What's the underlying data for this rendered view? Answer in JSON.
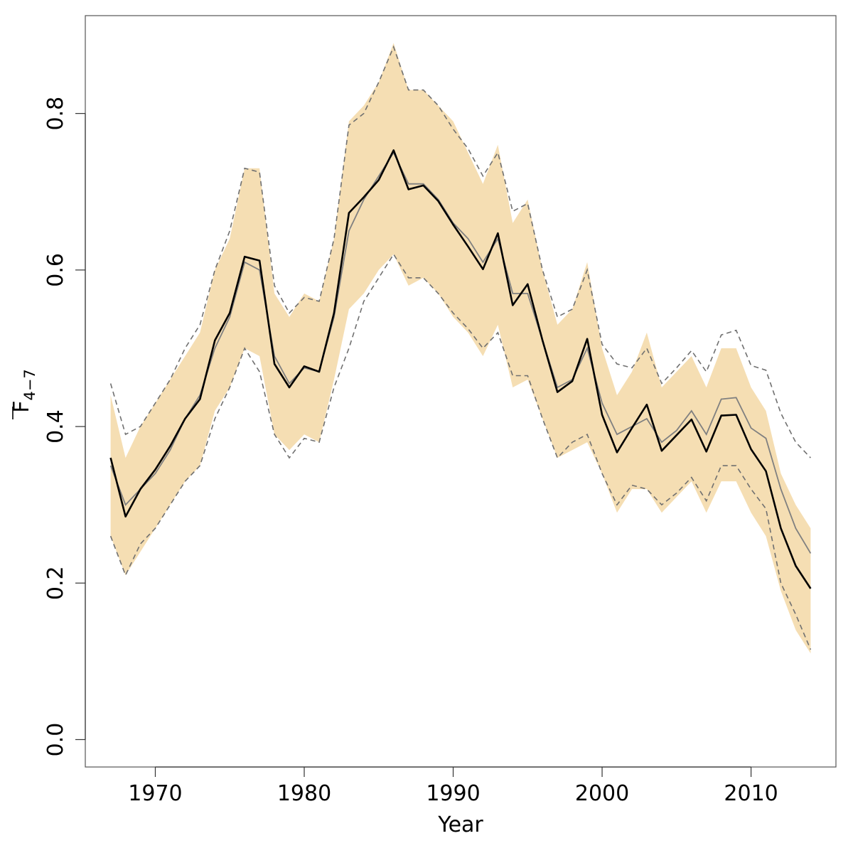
{
  "chart_data": {
    "type": "line",
    "xlabel": "Year",
    "ylabel_main": "F",
    "ylabel_sub": "4−7",
    "xlim": [
      1965.3,
      2015.7
    ],
    "ylim": [
      -0.035,
      0.925
    ],
    "xticks": [
      1970,
      1980,
      1990,
      2000,
      2010
    ],
    "xtick_labels": [
      "1970",
      "1980",
      "1990",
      "2000",
      "2010"
    ],
    "yticks": [
      0.0,
      0.2,
      0.4,
      0.6,
      0.8
    ],
    "ytick_labels": [
      "0.0",
      "0.2",
      "0.4",
      "0.6",
      "0.8"
    ],
    "grid": false,
    "colors": {
      "band": "#f5deb3",
      "estimate": "#000000",
      "alt_estimate": "#808080",
      "alt_bounds": "#707070"
    },
    "x": [
      1967,
      1968,
      1969,
      1970,
      1971,
      1972,
      1973,
      1974,
      1975,
      1976,
      1977,
      1978,
      1979,
      1980,
      1981,
      1982,
      1983,
      1984,
      1985,
      1986,
      1987,
      1988,
      1989,
      1990,
      1991,
      1992,
      1993,
      1994,
      1995,
      1996,
      1997,
      1998,
      1999,
      2000,
      2001,
      2002,
      2003,
      2004,
      2005,
      2006,
      2007,
      2008,
      2009,
      2010,
      2011,
      2012,
      2013,
      2014
    ],
    "series": [
      {
        "role": "band_lower",
        "values": [
          0.26,
          0.21,
          0.24,
          0.27,
          0.3,
          0.33,
          0.35,
          0.42,
          0.45,
          0.5,
          0.49,
          0.39,
          0.37,
          0.39,
          0.38,
          0.46,
          0.55,
          0.57,
          0.6,
          0.62,
          0.58,
          0.59,
          0.57,
          0.54,
          0.52,
          0.49,
          0.53,
          0.45,
          0.46,
          0.41,
          0.36,
          0.37,
          0.38,
          0.34,
          0.29,
          0.32,
          0.32,
          0.29,
          0.31,
          0.33,
          0.29,
          0.33,
          0.33,
          0.29,
          0.26,
          0.19,
          0.14,
          0.11
        ]
      },
      {
        "role": "band_upper",
        "values": [
          0.44,
          0.36,
          0.4,
          0.43,
          0.46,
          0.49,
          0.52,
          0.6,
          0.64,
          0.73,
          0.73,
          0.57,
          0.54,
          0.57,
          0.56,
          0.64,
          0.79,
          0.81,
          0.84,
          0.89,
          0.83,
          0.83,
          0.81,
          0.79,
          0.75,
          0.71,
          0.76,
          0.66,
          0.69,
          0.6,
          0.53,
          0.55,
          0.61,
          0.5,
          0.44,
          0.47,
          0.52,
          0.45,
          0.47,
          0.49,
          0.45,
          0.5,
          0.5,
          0.45,
          0.42,
          0.34,
          0.3,
          0.27
        ]
      },
      {
        "role": "estimate",
        "values": [
          0.36,
          0.285,
          0.32,
          0.345,
          0.375,
          0.41,
          0.435,
          0.51,
          0.545,
          0.617,
          0.612,
          0.48,
          0.45,
          0.477,
          0.47,
          0.545,
          0.673,
          0.693,
          0.715,
          0.753,
          0.703,
          0.708,
          0.688,
          0.658,
          0.63,
          0.601,
          0.647,
          0.555,
          0.582,
          0.51,
          0.444,
          0.458,
          0.512,
          0.415,
          0.367,
          0.398,
          0.428,
          0.369,
          0.389,
          0.409,
          0.368,
          0.414,
          0.415,
          0.371,
          0.343,
          0.27,
          0.222,
          0.193
        ]
      },
      {
        "role": "alt_estimate",
        "values": [
          0.35,
          0.3,
          0.32,
          0.34,
          0.37,
          0.41,
          0.44,
          0.5,
          0.54,
          0.61,
          0.6,
          0.49,
          0.455,
          0.475,
          0.47,
          0.54,
          0.65,
          0.69,
          0.72,
          0.75,
          0.71,
          0.71,
          0.69,
          0.66,
          0.64,
          0.61,
          0.64,
          0.57,
          0.57,
          0.51,
          0.45,
          0.46,
          0.5,
          0.43,
          0.39,
          0.4,
          0.41,
          0.38,
          0.395,
          0.42,
          0.39,
          0.435,
          0.437,
          0.398,
          0.385,
          0.32,
          0.27,
          0.238
        ]
      },
      {
        "role": "alt_upper",
        "values": [
          0.455,
          0.39,
          0.4,
          0.43,
          0.46,
          0.5,
          0.53,
          0.6,
          0.65,
          0.73,
          0.725,
          0.58,
          0.545,
          0.565,
          0.56,
          0.64,
          0.785,
          0.8,
          0.84,
          0.885,
          0.83,
          0.83,
          0.81,
          0.78,
          0.755,
          0.72,
          0.75,
          0.675,
          0.685,
          0.6,
          0.54,
          0.55,
          0.6,
          0.505,
          0.48,
          0.475,
          0.5,
          0.455,
          0.475,
          0.497,
          0.47,
          0.517,
          0.523,
          0.478,
          0.472,
          0.417,
          0.38,
          0.36
        ]
      },
      {
        "role": "alt_lower",
        "values": [
          0.26,
          0.21,
          0.25,
          0.27,
          0.3,
          0.33,
          0.35,
          0.41,
          0.45,
          0.5,
          0.47,
          0.39,
          0.36,
          0.385,
          0.38,
          0.45,
          0.5,
          0.56,
          0.59,
          0.62,
          0.59,
          0.59,
          0.57,
          0.545,
          0.525,
          0.5,
          0.52,
          0.465,
          0.465,
          0.41,
          0.36,
          0.38,
          0.39,
          0.34,
          0.3,
          0.325,
          0.32,
          0.3,
          0.315,
          0.335,
          0.305,
          0.35,
          0.35,
          0.32,
          0.295,
          0.2,
          0.16,
          0.115
        ]
      }
    ]
  }
}
